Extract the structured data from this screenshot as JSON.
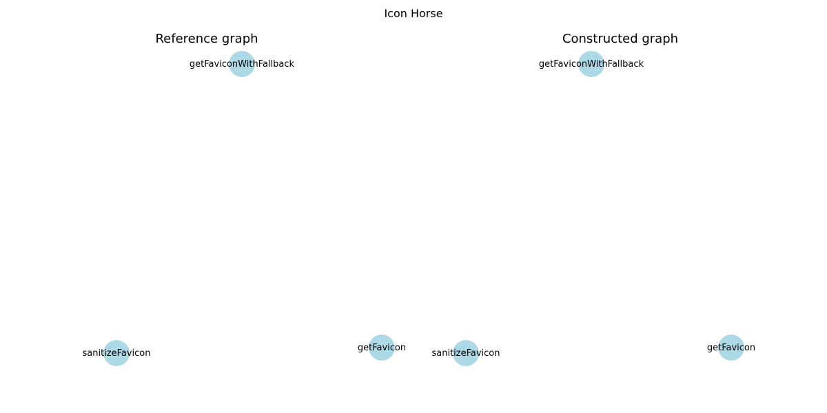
{
  "figure": {
    "title": "Icon Horse"
  },
  "panels": [
    {
      "title": "Reference graph",
      "nodes": [
        {
          "label": "getFaviconWithFallback"
        },
        {
          "label": "sanitizeFavicon"
        },
        {
          "label": "getFavicon"
        }
      ],
      "edges": []
    },
    {
      "title": "Constructed graph",
      "nodes": [
        {
          "label": "getFaviconWithFallback"
        },
        {
          "label": "sanitizeFavicon"
        },
        {
          "label": "getFavicon"
        }
      ],
      "edges": []
    }
  ],
  "colors": {
    "node_fill": "#add8e6",
    "text": "#000000",
    "background": "#ffffff"
  }
}
